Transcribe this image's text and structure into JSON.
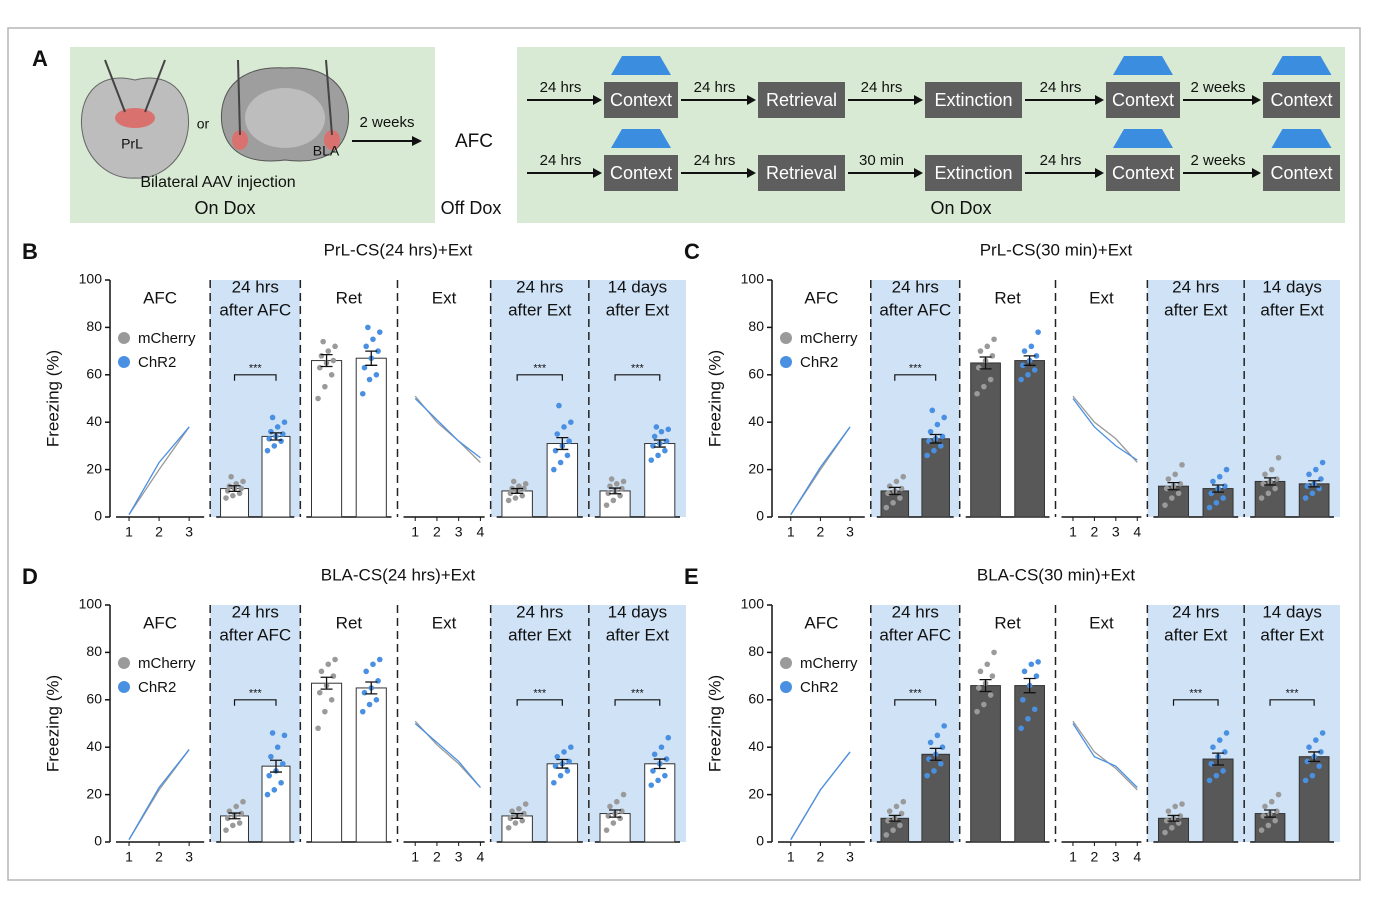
{
  "protocol": {
    "label": "A",
    "regions": [
      "PrL",
      "BLA"
    ],
    "or": "or",
    "injection": "Bilateral AAV injection",
    "interval": "2 weeks",
    "afc": "AFC",
    "left_condition": "On Dox",
    "middle_condition": "Off Dox",
    "right_condition": "On Dox",
    "rows": [
      {
        "steps": [
          {
            "interval": "24 hrs",
            "box": "Context",
            "light": true
          },
          {
            "interval": "24 hrs",
            "box": "Retrieval",
            "light": false
          },
          {
            "interval": "24 hrs",
            "box": "Extinction",
            "light": false
          },
          {
            "interval": "24 hrs",
            "box": "Context",
            "light": true
          },
          {
            "interval": "2 weeks",
            "box": "Context",
            "light": true
          }
        ]
      },
      {
        "steps": [
          {
            "interval": "24 hrs",
            "box": "Context",
            "light": true
          },
          {
            "interval": "24 hrs",
            "box": "Retrieval",
            "light": false
          },
          {
            "interval": "30 min",
            "box": "Extinction",
            "light": false
          },
          {
            "interval": "24 hrs",
            "box": "Context",
            "light": true
          },
          {
            "interval": "2 weeks",
            "box": "Context",
            "light": true
          }
        ]
      }
    ]
  },
  "chart_data": [
    {
      "type": "bar",
      "label": "B",
      "title": "PrL-CS(24 hrs)+Ext",
      "ylabel": "Freezing (%)",
      "ylim": [
        0,
        100
      ],
      "yticks": [
        0,
        20,
        40,
        60,
        80,
        100
      ],
      "bar_color": "#ffffff",
      "series": [
        {
          "name": "mCherry",
          "color": "#9a9a9a"
        },
        {
          "name": "ChR2",
          "color": "#4a90e2"
        }
      ],
      "panels": [
        {
          "type": "line",
          "label": [
            "AFC"
          ],
          "shaded": false,
          "categories": [
            1,
            2,
            3
          ],
          "values": [
            [
              1,
              20,
              38
            ],
            [
              1,
              23,
              38
            ]
          ]
        },
        {
          "type": "bar",
          "label": [
            "24 hrs",
            "after AFC"
          ],
          "shaded": true,
          "sig": "***",
          "values": [
            12,
            34
          ],
          "errors": [
            1.2,
            1.5
          ],
          "points": [
            [
              8,
              9,
              10,
              11,
              12,
              12,
              13,
              14,
              15,
              17
            ],
            [
              28,
              30,
              32,
              33,
              34,
              35,
              36,
              38,
              40,
              42
            ]
          ]
        },
        {
          "type": "bar",
          "label": [
            "Ret"
          ],
          "shaded": false,
          "values": [
            66,
            67
          ],
          "errors": [
            2.5,
            3
          ],
          "points": [
            [
              50,
              55,
              60,
              63,
              65,
              66,
              68,
              70,
              72,
              74
            ],
            [
              52,
              58,
              60,
              63,
              67,
              70,
              72,
              75,
              78,
              80
            ]
          ]
        },
        {
          "type": "line",
          "label": [
            "Ext"
          ],
          "shaded": false,
          "categories": [
            1,
            2,
            3,
            4
          ],
          "values": [
            [
              51,
              40,
              32,
              23
            ],
            [
              50,
              41,
              32,
              25
            ]
          ]
        },
        {
          "type": "bar",
          "label": [
            "24 hrs",
            "after Ext"
          ],
          "shaded": true,
          "sig": "***",
          "values": [
            11,
            31
          ],
          "errors": [
            1,
            2.5
          ],
          "points": [
            [
              7,
              8,
              9,
              10,
              11,
              12,
              12,
              13,
              14,
              15
            ],
            [
              20,
              23,
              26,
              28,
              30,
              32,
              35,
              38,
              40,
              47
            ]
          ]
        },
        {
          "type": "bar",
          "label": [
            "14 days",
            "after Ext"
          ],
          "shaded": true,
          "sig": "***",
          "values": [
            11,
            31
          ],
          "errors": [
            1.2,
            1.5
          ],
          "points": [
            [
              5,
              7,
              9,
              10,
              11,
              12,
              13,
              14,
              15,
              16
            ],
            [
              24,
              26,
              28,
              30,
              31,
              32,
              34,
              36,
              37,
              38
            ]
          ]
        }
      ]
    },
    {
      "type": "bar",
      "label": "C",
      "title": "PrL-CS(30 min)+Ext",
      "ylabel": "Freezing (%)",
      "ylim": [
        0,
        100
      ],
      "yticks": [
        0,
        20,
        40,
        60,
        80,
        100
      ],
      "bar_color": "#585858",
      "series": [
        {
          "name": "mCherry",
          "color": "#9a9a9a"
        },
        {
          "name": "ChR2",
          "color": "#4a90e2"
        }
      ],
      "panels": [
        {
          "type": "line",
          "label": [
            "AFC"
          ],
          "shaded": false,
          "categories": [
            1,
            2,
            3
          ],
          "values": [
            [
              1,
              20,
              38
            ],
            [
              1,
              21,
              38
            ]
          ]
        },
        {
          "type": "bar",
          "label": [
            "24 hrs",
            "after AFC"
          ],
          "shaded": true,
          "sig": "***",
          "values": [
            11,
            33
          ],
          "errors": [
            1.5,
            1.8
          ],
          "points": [
            [
              4,
              6,
              8,
              10,
              11,
              12,
              13,
              15,
              17
            ],
            [
              26,
              28,
              30,
              32,
              33,
              34,
              36,
              39,
              42,
              45
            ]
          ]
        },
        {
          "type": "bar",
          "label": [
            "Ret"
          ],
          "shaded": false,
          "values": [
            65,
            66
          ],
          "errors": [
            2.5,
            2
          ],
          "points": [
            [
              52,
              55,
              58,
              63,
              66,
              68,
              70,
              72,
              75
            ],
            [
              58,
              60,
              62,
              64,
              66,
              68,
              70,
              72,
              78
            ]
          ]
        },
        {
          "type": "line",
          "label": [
            "Ext"
          ],
          "shaded": false,
          "categories": [
            1,
            2,
            3,
            4
          ],
          "values": [
            [
              51,
              40,
              33,
              23
            ],
            [
              50,
              38,
              30,
              24
            ]
          ]
        },
        {
          "type": "bar",
          "label": [
            "24 hrs",
            "after Ext"
          ],
          "shaded": true,
          "values": [
            13,
            12
          ],
          "errors": [
            1.5,
            1.5
          ],
          "points": [
            [
              5,
              8,
              10,
              12,
              13,
              14,
              16,
              18,
              22
            ],
            [
              4,
              6,
              8,
              10,
              12,
              13,
              15,
              17,
              20
            ]
          ]
        },
        {
          "type": "bar",
          "label": [
            "14 days",
            "after Ext"
          ],
          "shaded": true,
          "values": [
            15,
            14
          ],
          "errors": [
            1.5,
            1.3
          ],
          "points": [
            [
              8,
              10,
              12,
              14,
              15,
              16,
              18,
              20,
              25
            ],
            [
              8,
              10,
              12,
              13,
              14,
              16,
              18,
              20,
              23
            ]
          ]
        }
      ]
    },
    {
      "type": "bar",
      "label": "D",
      "title": "BLA-CS(24 hrs)+Ext",
      "ylabel": "Freezing (%)",
      "ylim": [
        0,
        100
      ],
      "yticks": [
        0,
        20,
        40,
        60,
        80,
        100
      ],
      "bar_color": "#ffffff",
      "series": [
        {
          "name": "mCherry",
          "color": "#9a9a9a"
        },
        {
          "name": "ChR2",
          "color": "#4a90e2"
        }
      ],
      "panels": [
        {
          "type": "line",
          "label": [
            "AFC"
          ],
          "shaded": false,
          "categories": [
            1,
            2,
            3
          ],
          "values": [
            [
              1,
              22,
              39
            ],
            [
              1,
              23,
              39
            ]
          ]
        },
        {
          "type": "bar",
          "label": [
            "24 hrs",
            "after AFC"
          ],
          "shaded": true,
          "sig": "***",
          "values": [
            11,
            32
          ],
          "errors": [
            1.2,
            2.5
          ],
          "points": [
            [
              5,
              7,
              8,
              10,
              11,
              12,
              13,
              15,
              17
            ],
            [
              20,
              22,
              25,
              28,
              30,
              33,
              36,
              40,
              45,
              46
            ]
          ]
        },
        {
          "type": "bar",
          "label": [
            "Ret"
          ],
          "shaded": false,
          "values": [
            67,
            65
          ],
          "errors": [
            2.5,
            2.5
          ],
          "points": [
            [
              48,
              55,
              60,
              63,
              66,
              70,
              72,
              75,
              77
            ],
            [
              55,
              58,
              60,
              63,
              65,
              68,
              72,
              75,
              77
            ]
          ]
        },
        {
          "type": "line",
          "label": [
            "Ext"
          ],
          "shaded": false,
          "categories": [
            1,
            2,
            3,
            4
          ],
          "values": [
            [
              51,
              41,
              33,
              23
            ],
            [
              50,
              42,
              34,
              23
            ]
          ]
        },
        {
          "type": "bar",
          "label": [
            "24 hrs",
            "after Ext"
          ],
          "shaded": true,
          "sig": "***",
          "values": [
            11,
            33
          ],
          "errors": [
            1,
            1.8
          ],
          "points": [
            [
              6,
              8,
              9,
              10,
              11,
              12,
              13,
              14,
              16
            ],
            [
              25,
              28,
              30,
              32,
              33,
              34,
              36,
              38,
              40
            ]
          ]
        },
        {
          "type": "bar",
          "label": [
            "14 days",
            "after Ext"
          ],
          "shaded": true,
          "sig": "***",
          "values": [
            12,
            33
          ],
          "errors": [
            1.5,
            2
          ],
          "points": [
            [
              5,
              8,
              10,
              11,
              12,
              13,
              15,
              17,
              20
            ],
            [
              24,
              26,
              28,
              30,
              33,
              35,
              37,
              40,
              44
            ]
          ]
        }
      ]
    },
    {
      "type": "bar",
      "label": "E",
      "title": "BLA-CS(30 min)+Ext",
      "ylabel": "Freezing (%)",
      "ylim": [
        0,
        100
      ],
      "yticks": [
        0,
        20,
        40,
        60,
        80,
        100
      ],
      "bar_color": "#585858",
      "series": [
        {
          "name": "mCherry",
          "color": "#9a9a9a"
        },
        {
          "name": "ChR2",
          "color": "#4a90e2"
        }
      ],
      "panels": [
        {
          "type": "line",
          "label": [
            "AFC"
          ],
          "shaded": false,
          "categories": [
            1,
            2,
            3
          ],
          "values": [
            [
              1,
              22,
              38
            ],
            [
              1,
              22,
              38
            ]
          ]
        },
        {
          "type": "bar",
          "label": [
            "24 hrs",
            "after AFC"
          ],
          "shaded": true,
          "sig": "***",
          "values": [
            10,
            37
          ],
          "errors": [
            1.2,
            2.5
          ],
          "points": [
            [
              3,
              5,
              7,
              9,
              10,
              12,
              13,
              15,
              17
            ],
            [
              28,
              30,
              33,
              35,
              37,
              40,
              42,
              45,
              49
            ]
          ]
        },
        {
          "type": "bar",
          "label": [
            "Ret"
          ],
          "shaded": false,
          "values": [
            66,
            66
          ],
          "errors": [
            2.5,
            3
          ],
          "points": [
            [
              55,
              58,
              62,
              65,
              67,
              70,
              72,
              75,
              80
            ],
            [
              48,
              52,
              56,
              60,
              66,
              70,
              72,
              75,
              76
            ]
          ]
        },
        {
          "type": "line",
          "label": [
            "Ext"
          ],
          "shaded": false,
          "categories": [
            1,
            2,
            3,
            4
          ],
          "values": [
            [
              51,
              38,
              31,
              22
            ],
            [
              50,
              36,
              32,
              23
            ]
          ]
        },
        {
          "type": "bar",
          "label": [
            "24 hrs",
            "after Ext"
          ],
          "shaded": true,
          "sig": "***",
          "values": [
            10,
            35
          ],
          "errors": [
            1.2,
            2.5
          ],
          "points": [
            [
              4,
              6,
              8,
              9,
              10,
              11,
              13,
              15,
              16
            ],
            [
              26,
              28,
              30,
              33,
              36,
              38,
              40,
              43,
              46
            ]
          ]
        },
        {
          "type": "bar",
          "label": [
            "14 days",
            "after Ext"
          ],
          "shaded": true,
          "sig": "***",
          "values": [
            12,
            36
          ],
          "errors": [
            1.5,
            2
          ],
          "points": [
            [
              5,
              7,
              9,
              11,
              12,
              13,
              15,
              17,
              20
            ],
            [
              26,
              28,
              32,
              34,
              36,
              38,
              40,
              43,
              46
            ]
          ]
        }
      ]
    }
  ]
}
